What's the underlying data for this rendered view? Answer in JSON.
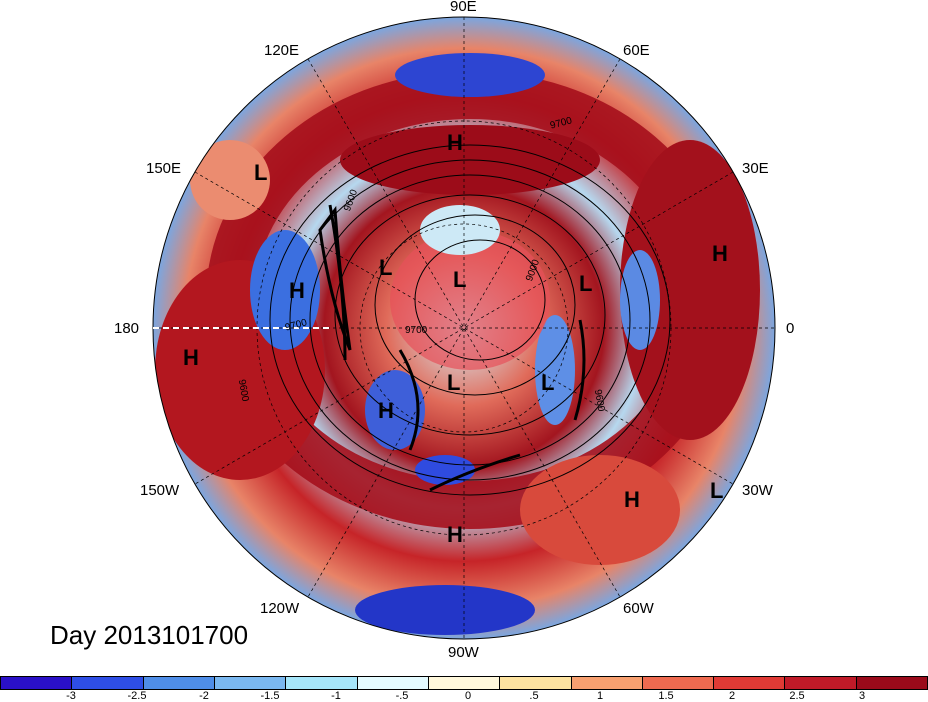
{
  "map": {
    "projection": "north-polar-stereographic",
    "longitude_labels": {
      "lon_90E": "90E",
      "lon_60E": "60E",
      "lon_30E": "30E",
      "lon_0": "0",
      "lon_30W": "30W",
      "lon_60W": "60W",
      "lon_90W": "90W",
      "lon_120W": "120W",
      "lon_150W": "150W",
      "lon_180": "180",
      "lon_150E": "150E",
      "lon_120E": "120E"
    },
    "pressure_markers": {
      "m1": "H",
      "m2": "L",
      "m3": "H",
      "m4": "L",
      "m5": "L",
      "m6": "L",
      "m7": "H",
      "m8": "H",
      "m9": "L",
      "m10": "H",
      "m11": "H",
      "m12": "L",
      "m13": "L",
      "m14": "H",
      "m15": "H",
      "m16": "L"
    },
    "contour_labels": {
      "c1": "9700",
      "c2": "9600",
      "c3": "9700",
      "c4": "9600",
      "c5": "9000",
      "c6": "9700",
      "c7": "9600"
    },
    "date_label": "Day 2013101700"
  },
  "colorbar": {
    "colors": [
      "#2a10c8",
      "#2e4ee6",
      "#4f8ee8",
      "#7bb8f0",
      "#a6e6fa",
      "#e4fbff",
      "#fff8dc",
      "#fde3a0",
      "#f7a070",
      "#ee6a50",
      "#e03a35",
      "#c01a28",
      "#9a0a1a"
    ],
    "ticks": {
      "t1": "-3",
      "t2": "-2.5",
      "t3": "-2",
      "t4": "-1.5",
      "t5": "-1",
      "t6": "-.5",
      "t7": "0",
      "t8": ".5",
      "t9": "1",
      "t10": "1.5",
      "t11": "2",
      "t12": "2.5",
      "t13": "3"
    }
  }
}
